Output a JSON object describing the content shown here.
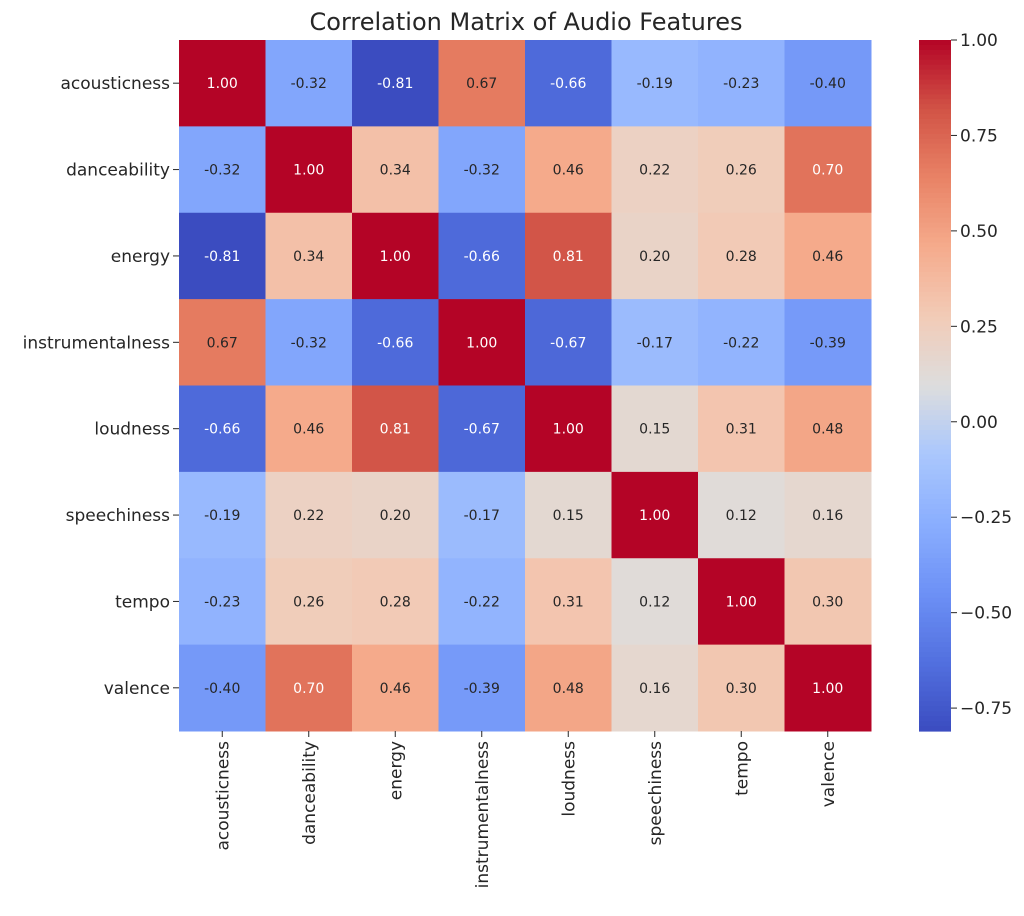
{
  "chart_data": {
    "type": "heatmap",
    "title": "Correlation Matrix of Audio Features",
    "xlabel": "",
    "ylabel": "",
    "rows": [
      "acousticness",
      "danceability",
      "energy",
      "instrumentalness",
      "loudness",
      "speechiness",
      "tempo",
      "valence"
    ],
    "columns": [
      "acousticness",
      "danceability",
      "energy",
      "instrumentalness",
      "loudness",
      "speechiness",
      "tempo",
      "valence"
    ],
    "values": [
      [
        1.0,
        -0.32,
        -0.81,
        0.67,
        -0.66,
        -0.19,
        -0.23,
        -0.4
      ],
      [
        -0.32,
        1.0,
        0.34,
        -0.32,
        0.46,
        0.22,
        0.26,
        0.7
      ],
      [
        -0.81,
        0.34,
        1.0,
        -0.66,
        0.81,
        0.2,
        0.28,
        0.46
      ],
      [
        0.67,
        -0.32,
        -0.66,
        1.0,
        -0.67,
        -0.17,
        -0.22,
        -0.39
      ],
      [
        -0.66,
        0.46,
        0.81,
        -0.67,
        1.0,
        0.15,
        0.31,
        0.48
      ],
      [
        -0.19,
        0.22,
        0.2,
        -0.17,
        0.15,
        1.0,
        0.12,
        0.16
      ],
      [
        -0.23,
        0.26,
        0.28,
        -0.22,
        0.31,
        0.12,
        1.0,
        0.3
      ],
      [
        -0.4,
        0.7,
        0.46,
        -0.39,
        0.48,
        0.16,
        0.3,
        1.0
      ]
    ],
    "value_format": "2 decimals",
    "colormap": "coolwarm",
    "color_range": [
      -0.81,
      1.0
    ],
    "colorbar": {
      "ticks": [
        1.0,
        0.75,
        0.5,
        0.25,
        0.0,
        -0.25,
        -0.5,
        -0.75
      ],
      "tick_labels": [
        "1.00",
        "0.75",
        "0.50",
        "0.25",
        "0.00",
        "−0.25",
        "−0.50",
        "−0.75"
      ],
      "placement": "right"
    },
    "grid": false
  }
}
